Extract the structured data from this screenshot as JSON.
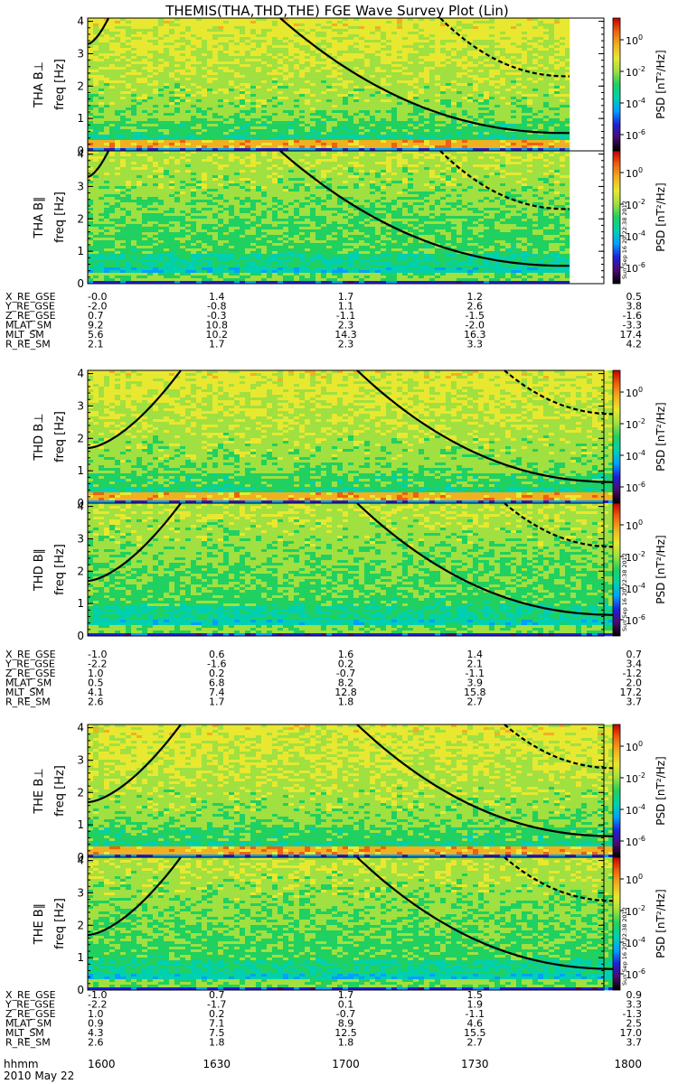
{
  "title": "THEMIS(THA,THD,THE) FGE Wave Survey Plot (Lin)",
  "date_label": "2010 May 22",
  "time_label_row": "hhmm",
  "colors": {
    "cbar": [
      "#000000",
      "#4b0a6e",
      "#2020d8",
      "#00a0ff",
      "#00d0b0",
      "#20d060",
      "#a0e040",
      "#e8e830",
      "#f0b020",
      "#f06010",
      "#c00000"
    ],
    "fit_line": "#000000"
  },
  "colorbar": {
    "label": "PSD [nT²/Hz]",
    "exponents": [
      "0",
      "-2",
      "-4",
      "-6"
    ],
    "stamp": "Sun Sep 16 20:22:38 2012"
  },
  "probes": [
    {
      "name": "THA",
      "panels": [
        {
          "label": "THA B⊥",
          "ylabel": "freq [Hz]"
        },
        {
          "label": "THA B∥",
          "ylabel": "freq [Hz]"
        }
      ],
      "ephemeris": [
        {
          "name": "X_RE_GSE",
          "values": [
            "-0.0",
            "1.4",
            "1.7",
            "1.2",
            "0.5"
          ]
        },
        {
          "name": "Y_RE_GSE",
          "values": [
            "-2.0",
            "-0.8",
            "1.1",
            "2.6",
            "3.8"
          ]
        },
        {
          "name": "Z_RE_GSE",
          "values": [
            "0.7",
            "-0.3",
            "-1.1",
            "-1.5",
            "-1.6"
          ]
        },
        {
          "name": "MLAT_SM",
          "values": [
            "9.2",
            "10.8",
            "2.3",
            "-2.0",
            "-3.3"
          ]
        },
        {
          "name": "MLT_SM",
          "values": [
            "5.6",
            "10.2",
            "14.3",
            "16.3",
            "17.4"
          ]
        },
        {
          "name": "R_RE_SM",
          "values": [
            "2.1",
            "1.7",
            "2.3",
            "3.3",
            "4.2"
          ]
        }
      ]
    },
    {
      "name": "THD",
      "panels": [
        {
          "label": "THD B⊥",
          "ylabel": "freq [Hz]"
        },
        {
          "label": "THD B∥",
          "ylabel": "freq [Hz]"
        }
      ],
      "ephemeris": [
        {
          "name": "X_RE_GSE",
          "values": [
            "-1.0",
            "0.6",
            "1.6",
            "1.4",
            "0.7"
          ]
        },
        {
          "name": "Y_RE_GSE",
          "values": [
            "-2.2",
            "-1.6",
            "0.2",
            "2.1",
            "3.4"
          ]
        },
        {
          "name": "Z_RE_GSE",
          "values": [
            "1.0",
            "0.2",
            "-0.7",
            "-1.1",
            "-1.2"
          ]
        },
        {
          "name": "MLAT_SM",
          "values": [
            "0.5",
            "6.8",
            "8.2",
            "3.9",
            "2.0"
          ]
        },
        {
          "name": "MLT_SM",
          "values": [
            "4.1",
            "7.4",
            "12.8",
            "15.8",
            "17.2"
          ]
        },
        {
          "name": "R_RE_SM",
          "values": [
            "2.6",
            "1.7",
            "1.8",
            "2.7",
            "3.7"
          ]
        }
      ]
    },
    {
      "name": "THE",
      "panels": [
        {
          "label": "THE B⊥",
          "ylabel": "freq [Hz]"
        },
        {
          "label": "THE B∥",
          "ylabel": "freq [Hz]"
        }
      ],
      "ephemeris": [
        {
          "name": "X_RE_GSE",
          "values": [
            "-1.0",
            "0.7",
            "1.7",
            "1.5",
            "0.9"
          ]
        },
        {
          "name": "Y_RE_GSE",
          "values": [
            "-2.2",
            "-1.7",
            "0.1",
            "1.9",
            "3.3"
          ]
        },
        {
          "name": "Z_RE_GSE",
          "values": [
            "1.0",
            "0.2",
            "-0.7",
            "-1.1",
            "-1.3"
          ]
        },
        {
          "name": "MLAT_SM",
          "values": [
            "0.9",
            "7.1",
            "8.9",
            "4.6",
            "2.5"
          ]
        },
        {
          "name": "MLT_SM",
          "values": [
            "4.3",
            "7.5",
            "12.5",
            "15.5",
            "17.0"
          ]
        },
        {
          "name": "R_RE_SM",
          "values": [
            "2.6",
            "1.8",
            "1.8",
            "2.7",
            "3.7"
          ]
        }
      ]
    }
  ],
  "chart_data": {
    "type": "heatmap",
    "title": "THEMIS(THA,THD,THE) FGE Wave Survey Plot (Lin)",
    "xlabel": "hhmm",
    "x_ticks": [
      "1600",
      "1630",
      "1700",
      "1730",
      "1800"
    ],
    "ylabel": "freq [Hz]",
    "ylim": [
      0,
      4.1
    ],
    "y_ticks": [
      0,
      1,
      2,
      3,
      4
    ],
    "zlabel": "PSD [nT²/Hz]",
    "zscale": "log",
    "zlim": [
      1e-07,
      10.0
    ],
    "data_end": {
      "THA": "1752",
      "THD": "1803",
      "THE": "1803"
    },
    "overlay": "black dashed curves (harmonic fit lines) over each spectrogram"
  }
}
